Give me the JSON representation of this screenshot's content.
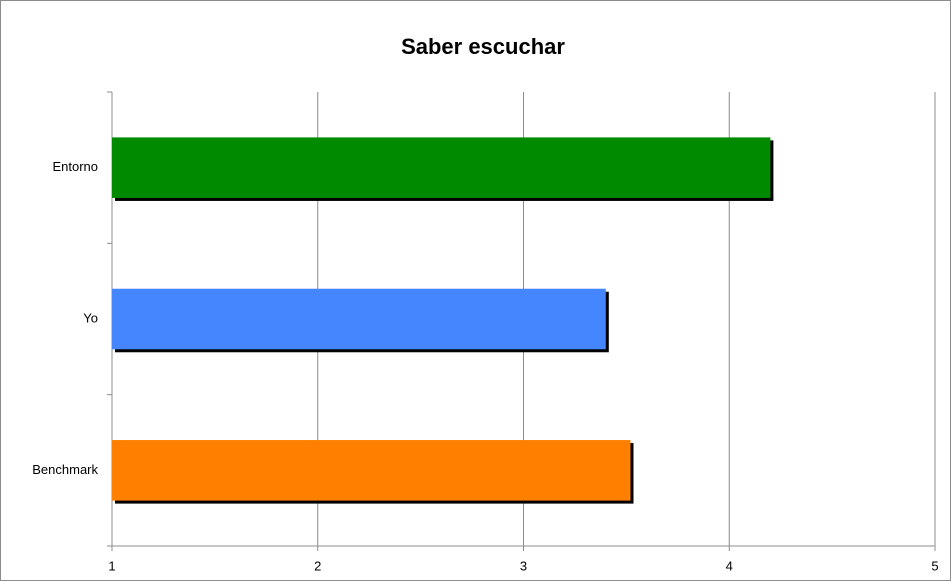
{
  "chart_data": {
    "type": "bar",
    "orientation": "horizontal",
    "title": "Saber escuchar",
    "categories": [
      "Entorno",
      "Yo",
      "Benchmark"
    ],
    "values": [
      4.2,
      3.4,
      3.52
    ],
    "colors": [
      "#008a00",
      "#4586ff",
      "#ff7f00"
    ],
    "xlim": [
      1,
      5
    ],
    "xticks": [
      1,
      2,
      3,
      4,
      5
    ],
    "grid": true,
    "shadow": true
  }
}
